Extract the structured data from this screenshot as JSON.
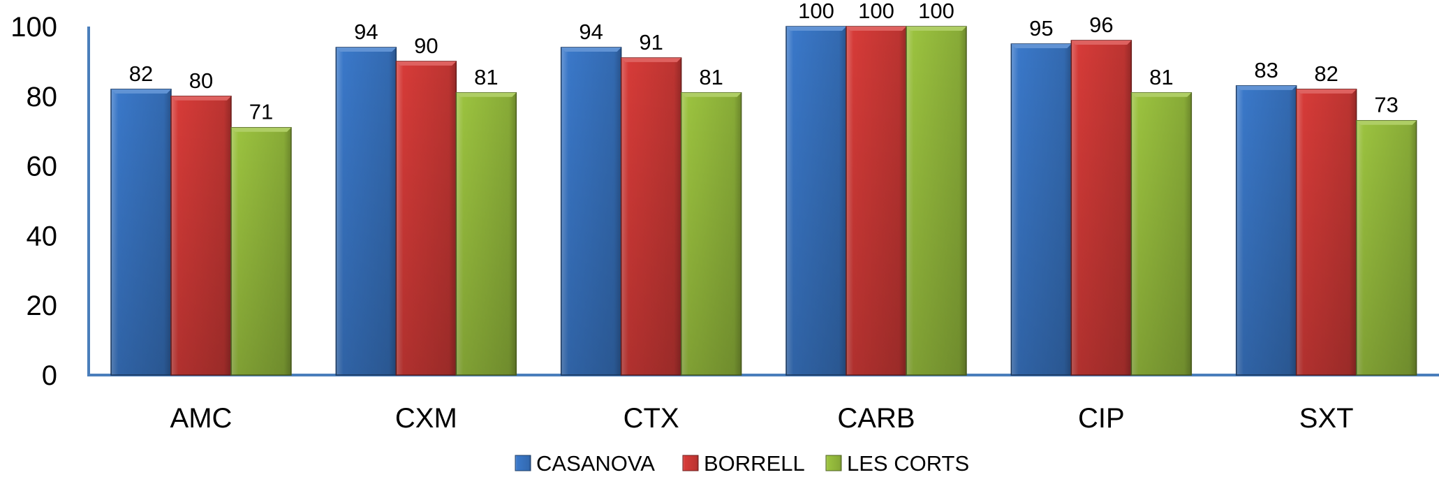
{
  "chart_data": {
    "type": "bar",
    "title": "",
    "xlabel": "",
    "ylabel": "",
    "categories": [
      "AMC",
      "CXM",
      "CTX",
      "CARB",
      "CIP",
      "SXT"
    ],
    "series": [
      {
        "name": "CASANOVA",
        "color": "#3a78c9",
        "values": [
          82,
          94,
          94,
          100,
          95,
          83
        ]
      },
      {
        "name": "BORRELL",
        "color": "#d63b38",
        "values": [
          80,
          90,
          91,
          100,
          96,
          82
        ]
      },
      {
        "name": "LES CORTS",
        "color": "#9bc23f",
        "values": [
          71,
          81,
          81,
          100,
          81,
          73
        ]
      }
    ],
    "ylim": [
      0,
      100
    ],
    "yticks": [
      "0",
      "20",
      "40",
      "60",
      "80",
      "100"
    ],
    "grid": false,
    "legend_position": "bottom",
    "axis_color": "#4a7ebb"
  }
}
